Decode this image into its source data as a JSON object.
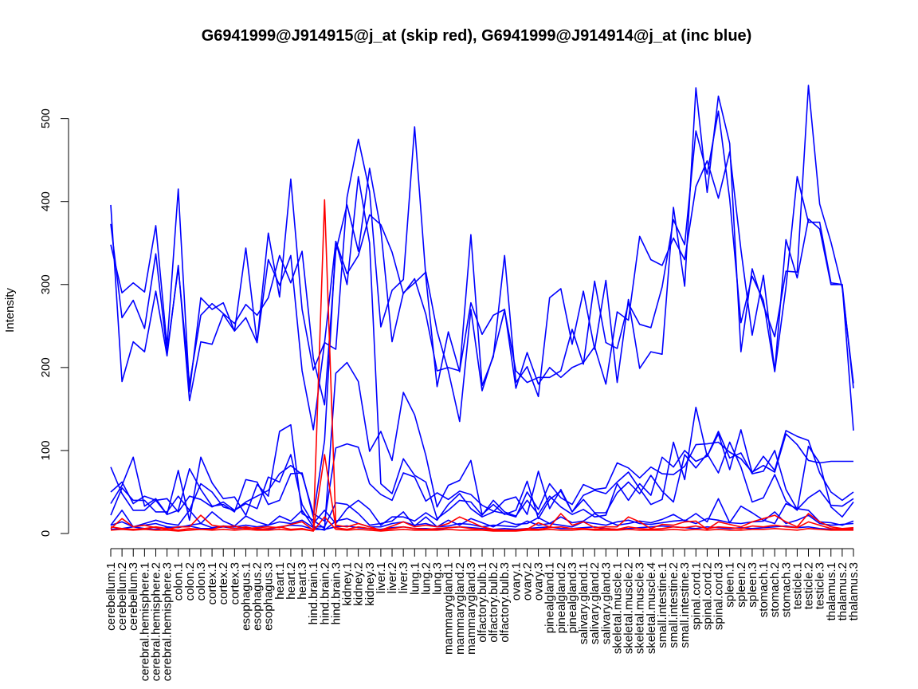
{
  "chart_data": {
    "type": "line",
    "title": "G6941999@J914915@j_at (skip red), G6941999@J914914@j_at (inc blue)",
    "xlabel": "",
    "ylabel": "Intensity",
    "ylim": [
      0,
      540
    ],
    "yticks": [
      0,
      100,
      200,
      300,
      400,
      500
    ],
    "grid": false,
    "legend": "none",
    "colors": {
      "skip": "#ff0000",
      "inc": "#0000ff",
      "axis": "#000000"
    },
    "categories": [
      "cerebellum.1",
      "cerebellum.2",
      "cerebellum.3",
      "cerebral.hemisphere.1",
      "cerebral.hemisphere.2",
      "cerebral.hemisphere.3",
      "colon.1",
      "colon.2",
      "colon.3",
      "cortex.1",
      "cortex.2",
      "cortex.3",
      "esophagus.1",
      "esophagus.2",
      "esophagus.3",
      "heart.1",
      "heart.2",
      "heart.3",
      "hind.brain.1",
      "hind.brain.2",
      "hind.brain.3",
      "kidney.1",
      "kidney.2",
      "kidney.3",
      "liver.1",
      "liver.2",
      "liver.3",
      "lung.1",
      "lung.2",
      "lung.3",
      "mammarygland.1",
      "mammarygland.2",
      "mammarygland.3",
      "olfactory.bulb.1",
      "olfactory.bulb.2",
      "olfactory.bulb.3",
      "ovary.1",
      "ovary.2",
      "ovary.3",
      "pinealgland.1",
      "pinealgland.2",
      "pinealgland.3",
      "salivary.gland.1",
      "salivary.gland.2",
      "salivary.gland.3",
      "skeletal.muscle.1",
      "skeletal.muscle.2",
      "skeletal.muscle.3",
      "skeletal.muscle.4",
      "small.intestine.1",
      "small.intestine.2",
      "small.intestine.3",
      "spinal.cord.1",
      "spinal.cord.2",
      "spinal.cord.3",
      "spleen.1",
      "spleen.2",
      "spleen.3",
      "stomach.1",
      "stomach.2",
      "stomach.3",
      "testicle.1",
      "testicle.2",
      "testicle.3",
      "thalamus.1",
      "thalamus.2",
      "thalamus.3"
    ],
    "series": [
      {
        "group": "inc",
        "values": [
          396,
          183,
          231,
          219,
          292,
          214,
          323,
          160,
          231,
          228,
          264,
          244,
          260,
          230,
          330,
          299,
          335,
          196,
          125,
          230,
          352,
          313,
          335,
          384,
          372,
          339,
          289,
          307,
          264,
          196,
          200,
          196,
          278,
          240,
          263,
          270,
          175,
          218,
          180,
          200,
          188,
          200,
          206,
          225,
          180,
          267,
          257,
          358,
          330,
          323,
          356,
          330,
          418,
          449,
          404,
          460,
          342,
          239,
          311,
          196,
          354,
          308,
          379,
          367,
          300,
          300,
          124
        ]
      },
      {
        "group": "inc",
        "values": [
          348,
          290,
          302,
          291,
          371,
          226,
          415,
          171,
          284,
          270,
          278,
          244,
          344,
          230,
          362,
          285,
          427,
          270,
          197,
          230,
          222,
          405,
          475,
          412,
          249,
          293,
          306,
          490,
          309,
          177,
          243,
          195,
          360,
          178,
          213,
          335,
          182,
          201,
          165,
          284,
          295,
          228,
          292,
          222,
          305,
          182,
          282,
          199,
          219,
          216,
          393,
          298,
          537,
          411,
          527,
          470,
          219,
          319,
          275,
          237,
          316,
          315,
          540,
          397,
          351,
          296,
          181
        ]
      },
      {
        "group": "inc",
        "values": [
          373,
          260,
          281,
          247,
          337,
          218,
          320,
          180,
          263,
          277,
          265,
          253,
          276,
          263,
          284,
          335,
          302,
          340,
          211,
          155,
          340,
          396,
          340,
          440,
          366,
          231,
          290,
          302,
          315,
          244,
          196,
          135,
          270,
          172,
          215,
          269,
          196,
          182,
          188,
          188,
          196,
          246,
          204,
          304,
          230,
          223,
          277,
          252,
          248,
          297,
          378,
          348,
          485,
          433,
          509,
          403,
          254,
          310,
          281,
          195,
          297,
          430,
          375,
          375,
          302,
          300,
          175
        ]
      },
      {
        "group": "inc",
        "values": [
          36,
          58,
          92,
          33,
          42,
          23,
          76,
          16,
          92,
          61,
          42,
          44,
          22,
          59,
          45,
          123,
          131,
          24,
          16,
          6,
          193,
          206,
          183,
          99,
          123,
          88,
          170,
          143,
          94,
          32,
          58,
          64,
          88,
          23,
          35,
          23,
          28,
          63,
          18,
          41,
          51,
          26,
          46,
          52,
          48,
          62,
          74,
          54,
          35,
          41,
          110,
          65,
          152,
          93,
          120,
          77,
          125,
          73,
          93,
          76,
          124,
          117,
          112,
          73,
          50,
          40,
          50
        ]
      },
      {
        "group": "inc",
        "values": [
          80,
          48,
          28,
          28,
          40,
          23,
          28,
          78,
          53,
          33,
          35,
          26,
          65,
          62,
          35,
          40,
          72,
          73,
          20,
          112,
          352,
          300,
          430,
          350,
          60,
          48,
          90,
          70,
          62,
          18,
          28,
          40,
          38,
          22,
          40,
          26,
          21,
          40,
          23,
          45,
          32,
          23,
          29,
          20,
          22,
          60,
          40,
          60,
          46,
          92,
          80,
          100,
          87,
          93,
          123,
          91,
          97,
          72,
          75,
          100,
          53,
          29,
          43,
          52,
          34,
          33,
          42
        ]
      },
      {
        "group": "inc",
        "values": [
          50,
          62,
          36,
          45,
          40,
          42,
          26,
          45,
          41,
          32,
          38,
          28,
          38,
          45,
          52,
          72,
          82,
          71,
          24,
          15,
          103,
          108,
          104,
          60,
          47,
          40,
          73,
          68,
          39,
          49,
          41,
          51,
          47,
          34,
          27,
          24,
          20,
          50,
          29,
          60,
          43,
          35,
          59,
          53,
          55,
          85,
          79,
          67,
          80,
          72,
          71,
          81,
          107,
          108,
          110,
          98,
          90,
          74,
          82,
          74,
          120,
          107,
          88,
          85,
          87,
          87,
          87
        ]
      },
      {
        "group": "inc",
        "values": [
          22,
          55,
          40,
          40,
          26,
          26,
          45,
          28,
          60,
          50,
          32,
          28,
          36,
          30,
          68,
          62,
          95,
          35,
          12,
          28,
          12,
          30,
          40,
          29,
          10,
          20,
          20,
          15,
          25,
          16,
          35,
          48,
          30,
          20,
          26,
          40,
          44,
          23,
          75,
          30,
          53,
          26,
          41,
          25,
          25,
          49,
          62,
          48,
          70,
          51,
          38,
          95,
          79,
          96,
          73,
          110,
          80,
          38,
          43,
          71,
          39,
          28,
          105,
          85,
          32,
          20,
          38
        ]
      },
      {
        "group": "inc",
        "values": [
          10,
          14,
          8,
          12,
          16,
          12,
          10,
          28,
          12,
          26,
          15,
          9,
          21,
          14,
          10,
          21,
          15,
          28,
          8,
          8,
          37,
          35,
          24,
          10,
          12,
          15,
          26,
          9,
          20,
          8,
          16,
          10,
          18,
          13,
          8,
          15,
          11,
          12,
          19,
          12,
          20,
          13,
          15,
          24,
          16,
          10,
          12,
          15,
          13,
          17,
          23,
          15,
          24,
          14,
          42,
          13,
          33,
          25,
          16,
          12,
          36,
          30,
          28,
          14,
          13,
          10,
          15
        ]
      },
      {
        "group": "inc",
        "values": [
          10,
          28,
          8,
          10,
          12,
          8,
          7,
          10,
          12,
          7,
          9,
          8,
          10,
          8,
          10,
          14,
          12,
          16,
          7,
          4,
          15,
          18,
          12,
          8,
          8,
          12,
          14,
          10,
          12,
          8,
          9,
          12,
          11,
          8,
          10,
          9,
          8,
          15,
          10,
          12,
          10,
          8,
          14,
          12,
          10,
          14,
          16,
          12,
          11,
          13,
          15,
          16,
          12,
          18,
          16,
          13,
          12,
          14,
          15,
          26,
          12,
          16,
          22,
          12,
          10,
          11,
          12
        ]
      },
      {
        "group": "inc",
        "values": [
          5,
          6,
          8,
          6,
          5,
          7,
          8,
          9,
          6,
          6,
          8,
          6,
          7,
          6,
          5,
          8,
          10,
          9,
          5,
          5,
          8,
          9,
          7,
          6,
          5,
          7,
          8,
          6,
          6,
          5,
          7,
          8,
          7,
          6,
          5,
          6,
          5,
          6,
          7,
          8,
          6,
          6,
          7,
          8,
          6,
          5,
          6,
          7,
          8,
          9,
          8,
          7,
          6,
          8,
          7,
          6,
          7,
          6,
          7,
          8,
          9,
          7,
          8,
          6,
          5,
          6,
          5
        ]
      },
      {
        "group": "skip",
        "values": [
          6,
          18,
          8,
          10,
          7,
          5,
          8,
          8,
          22,
          10,
          8,
          9,
          6,
          7,
          8,
          7,
          11,
          14,
          4,
          402,
          10,
          8,
          12,
          8,
          4,
          9,
          14,
          8,
          10,
          8,
          12,
          20,
          14,
          8,
          5,
          4,
          4,
          5,
          13,
          8,
          24,
          10,
          14,
          7,
          8,
          8,
          20,
          14,
          6,
          11,
          10,
          14,
          15,
          5,
          14,
          11,
          8,
          14,
          18,
          22,
          14,
          8,
          24,
          14,
          8,
          6,
          7
        ]
      },
      {
        "group": "skip",
        "values": [
          8,
          6,
          5,
          6,
          8,
          6,
          4,
          6,
          5,
          5,
          9,
          6,
          8,
          5,
          6,
          8,
          5,
          6,
          3,
          95,
          7,
          5,
          8,
          6,
          4,
          6,
          8,
          6,
          5,
          6,
          7,
          8,
          6,
          5,
          4,
          4,
          4,
          6,
          5,
          7,
          8,
          6,
          6,
          5,
          6,
          5,
          8,
          6,
          5,
          6,
          8,
          7,
          9,
          6,
          8,
          7,
          6,
          9,
          8,
          10,
          8,
          7,
          14,
          10,
          6,
          5,
          6
        ]
      },
      {
        "group": "skip",
        "values": [
          4,
          5,
          4,
          5,
          4,
          4,
          3,
          4,
          5,
          4,
          5,
          4,
          5,
          4,
          4,
          5,
          4,
          5,
          3,
          20,
          5,
          4,
          5,
          4,
          3,
          4,
          5,
          4,
          4,
          4,
          5,
          4,
          4,
          4,
          3,
          3,
          3,
          4,
          4,
          5,
          4,
          4,
          5,
          4,
          4,
          4,
          5,
          4,
          4,
          4,
          5,
          4,
          5,
          4,
          5,
          4,
          4,
          5,
          5,
          6,
          5,
          4,
          6,
          5,
          4,
          4,
          4
        ]
      }
    ]
  }
}
